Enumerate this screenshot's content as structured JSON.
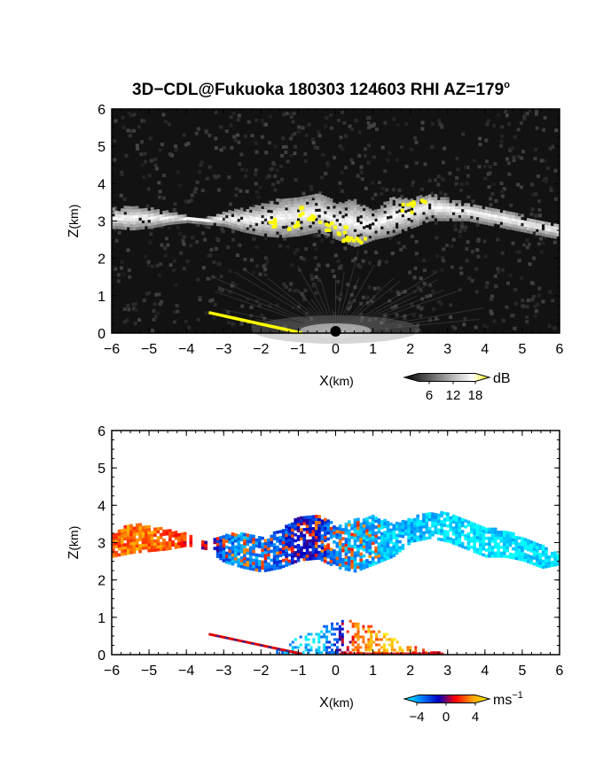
{
  "title": "3D−CDL@Fukuoka 180303 124603 RHI AZ=179",
  "title_degree_mark": "o",
  "chart_data": [
    {
      "type": "heatmap",
      "variable": "reflectivity",
      "xlabel": "X",
      "xlabel_unit": "(km)",
      "ylabel": "Z",
      "ylabel_unit": "(km)",
      "xlim": [
        -6,
        6
      ],
      "ylim": [
        0,
        6
      ],
      "x_ticks": [
        "−6",
        "−5",
        "−4",
        "−3",
        "−2",
        "−1",
        "0",
        "1",
        "2",
        "3",
        "4",
        "5",
        "6"
      ],
      "y_ticks": [
        "0",
        "1",
        "2",
        "3",
        "4",
        "5",
        "6"
      ],
      "background": "#121212",
      "cloud_layer": {
        "x": [
          -6,
          -5.5,
          -5,
          -4.5,
          -4,
          -3.5,
          -3,
          -2.5,
          -2,
          -1.5,
          -1,
          -0.5,
          0,
          0.5,
          1,
          1.5,
          2,
          2.5,
          3,
          3.5,
          4,
          4.5,
          5,
          5.5,
          6
        ],
        "bottom_km": [
          2.8,
          2.75,
          2.8,
          2.9,
          2.95,
          2.9,
          2.85,
          2.7,
          2.6,
          2.55,
          2.6,
          2.7,
          2.5,
          2.3,
          2.5,
          2.6,
          2.8,
          3.0,
          3.0,
          3.0,
          2.9,
          2.8,
          2.7,
          2.6,
          2.5
        ],
        "top_km": [
          3.3,
          3.35,
          3.3,
          3.2,
          3.1,
          3.05,
          3.2,
          3.3,
          3.4,
          3.55,
          3.6,
          3.7,
          3.45,
          3.55,
          3.25,
          3.6,
          3.55,
          3.7,
          3.55,
          3.45,
          3.35,
          3.25,
          3.1,
          3.0,
          2.9
        ]
      },
      "high_values_x_km": [
        -1.7,
        -1.2,
        -0.9,
        -0.6,
        -0.3,
        0.1,
        0.3,
        0.6,
        1.9,
        2.2
      ],
      "high_values_z_km": [
        3.0,
        2.9,
        3.3,
        3.1,
        2.9,
        2.8,
        2.6,
        2.5,
        3.4,
        3.6
      ],
      "ground_clutter_line": {
        "x": [
          -3.4,
          -0.9
        ],
        "z": [
          0.55,
          0.0
        ]
      },
      "colorbar": {
        "label": "dB",
        "ticks": [
          "6",
          "12",
          "18"
        ],
        "colors": [
          "#000000",
          "#404040",
          "#808080",
          "#c0c0c0",
          "#ffffff",
          "#ffff00"
        ]
      }
    },
    {
      "type": "heatmap",
      "variable": "doppler_velocity",
      "xlabel": "X",
      "xlabel_unit": "(km)",
      "ylabel": "Z",
      "ylabel_unit": "(km)",
      "xlim": [
        -6,
        6
      ],
      "ylim": [
        0,
        6
      ],
      "x_ticks": [
        "−6",
        "−5",
        "−4",
        "−3",
        "−2",
        "−1",
        "0",
        "1",
        "2",
        "3",
        "4",
        "5",
        "6"
      ],
      "y_ticks": [
        "0",
        "1",
        "2",
        "3",
        "4",
        "5",
        "6"
      ],
      "background": "#ffffff",
      "cloud_layer_velocity": {
        "x": [
          -6,
          -5.5,
          -5,
          -4.5,
          -4,
          -3.5,
          -3,
          -2.5,
          -2,
          -1.5,
          -1,
          -0.5,
          0,
          0.5,
          1,
          1.5,
          2,
          2.5,
          3,
          3.5,
          4,
          4.5,
          5,
          5.5,
          6
        ],
        "bottom_km": [
          2.6,
          2.7,
          2.75,
          2.8,
          2.9,
          2.8,
          2.45,
          2.3,
          2.2,
          2.3,
          2.5,
          2.55,
          2.3,
          2.2,
          2.4,
          2.6,
          3.0,
          3.1,
          3.0,
          2.8,
          2.6,
          2.6,
          2.5,
          2.3,
          2.4
        ],
        "top_km": [
          3.2,
          3.5,
          3.4,
          3.3,
          3.2,
          3.0,
          3.2,
          3.2,
          3.1,
          3.3,
          3.7,
          3.75,
          3.4,
          3.6,
          3.7,
          3.45,
          3.65,
          3.75,
          3.8,
          3.6,
          3.4,
          3.3,
          3.1,
          2.9,
          2.6
        ],
        "ms": [
          2.5,
          3.0,
          3.0,
          2.5,
          1.5,
          0.5,
          -3.5,
          -4.0,
          -3.5,
          -3.0,
          -1.5,
          -2.0,
          -4.0,
          -4.5,
          -4.5,
          -5.0,
          -4.5,
          -5.0,
          -5.5,
          -5.5,
          -5.5,
          -5.5,
          -5.5,
          -5.5,
          -5.5
        ]
      },
      "near_ground_velocity": {
        "x": [
          -1.5,
          -1.0,
          -0.5,
          0.0,
          0.5,
          1.0,
          1.5,
          2.0,
          2.5
        ],
        "top_km": [
          0.1,
          0.45,
          0.65,
          0.9,
          0.85,
          0.7,
          0.45,
          0.2,
          0.05
        ],
        "ms": [
          -4.0,
          -4.5,
          -5.0,
          -2.0,
          2.5,
          3.5,
          4.5,
          3.0,
          1.0
        ]
      },
      "colorbar": {
        "label": "ms",
        "label_exponent": "−1",
        "ticks": [
          "−4",
          "0",
          "4"
        ],
        "vmin": -6,
        "vmax": 6,
        "colors": [
          "#00ffff",
          "#0080ff",
          "#0000c0",
          "#ff0000",
          "#ffa000",
          "#ffff00"
        ]
      }
    }
  ]
}
